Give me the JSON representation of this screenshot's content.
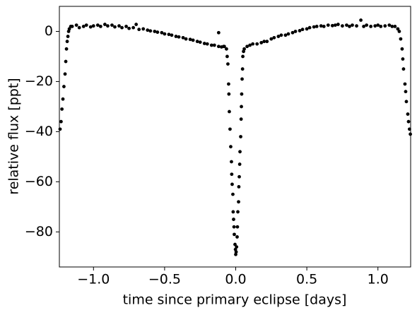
{
  "chart_data": {
    "type": "scatter",
    "xlabel": "time since primary eclipse [days]",
    "ylabel": "relative flux [ppt]",
    "color": "#000000",
    "x": [
      -1.235,
      -1.228,
      -1.222,
      -1.215,
      -1.208,
      -1.2,
      -1.195,
      -1.19,
      -1.185,
      -1.18,
      -1.175,
      -1.17,
      -1.16,
      -1.15,
      -1.12,
      -1.1,
      -1.07,
      -1.05,
      -1.02,
      -1.0,
      -0.97,
      -0.95,
      -0.92,
      -0.9,
      -0.87,
      -0.85,
      -0.82,
      -0.8,
      -0.77,
      -0.75,
      -0.72,
      -0.7,
      -0.68,
      -0.65,
      -0.62,
      -0.6,
      -0.57,
      -0.55,
      -0.52,
      -0.5,
      -0.47,
      -0.45,
      -0.42,
      -0.4,
      -0.37,
      -0.35,
      -0.32,
      -0.3,
      -0.27,
      -0.25,
      -0.22,
      -0.2,
      -0.17,
      -0.15,
      -0.12,
      -0.1,
      -0.085,
      -0.08,
      -0.065,
      -0.06,
      -0.055,
      -0.05,
      -0.048,
      -0.045,
      -0.04,
      -0.035,
      -0.03,
      -0.028,
      -0.025,
      -0.02,
      -0.018,
      -0.015,
      -0.012,
      -0.01,
      -0.005,
      -0.002,
      0.0,
      0.003,
      0.006,
      0.01,
      0.012,
      0.015,
      0.02,
      0.022,
      0.025,
      0.028,
      0.03,
      0.035,
      0.038,
      0.04,
      0.042,
      0.045,
      0.048,
      0.05,
      0.055,
      0.06,
      0.08,
      0.1,
      0.12,
      0.15,
      0.18,
      0.2,
      0.22,
      0.25,
      0.27,
      0.3,
      0.32,
      0.35,
      0.37,
      0.4,
      0.42,
      0.45,
      0.47,
      0.5,
      0.52,
      0.55,
      0.57,
      0.6,
      0.62,
      0.65,
      0.68,
      0.7,
      0.72,
      0.75,
      0.78,
      0.8,
      0.82,
      0.85,
      0.88,
      0.9,
      0.92,
      0.95,
      0.98,
      1.0,
      1.02,
      1.05,
      1.08,
      1.1,
      1.12,
      1.14,
      1.15,
      1.16,
      1.17,
      1.175,
      1.18,
      1.19,
      1.195,
      1.2,
      1.21,
      1.215,
      1.222,
      1.228,
      -0.12
    ],
    "y": [
      -39,
      -36,
      -31,
      -27,
      -22,
      -17,
      -12,
      -7,
      -4,
      -2,
      0,
      1,
      2,
      2,
      2.5,
      1.5,
      2,
      2.5,
      1.8,
      2.2,
      2.5,
      2,
      2.8,
      2.2,
      2.5,
      1.8,
      2.2,
      1.5,
      2,
      1.2,
      1.5,
      2.8,
      0.8,
      1,
      0.5,
      0.2,
      0,
      -0.3,
      -0.5,
      -1,
      -1.2,
      -1.5,
      -2,
      -2.2,
      -2.5,
      -3,
      -3.2,
      -3.5,
      -4,
      -4.3,
      -4.8,
      -5,
      -5.5,
      -5.5,
      -6,
      -6.2,
      -6,
      -6,
      -7,
      -10,
      -13,
      -21,
      -25,
      -32,
      -39,
      -46,
      -52,
      -57,
      -61,
      -65,
      -72,
      -75,
      -78,
      -81,
      -85,
      -87,
      -89,
      -88,
      -86,
      -82,
      -78,
      -72,
      -68,
      -62,
      -58,
      -53,
      -48,
      -42,
      -35,
      -30,
      -25,
      -19,
      -15,
      -10,
      -8,
      -7,
      -6,
      -5.5,
      -5,
      -5,
      -4.5,
      -4,
      -4,
      -3,
      -2.5,
      -2,
      -1.5,
      -1.5,
      -1,
      -0.5,
      0,
      0.3,
      0.8,
      1,
      1.5,
      1.8,
      2,
      2.2,
      2,
      2.5,
      2.3,
      2.5,
      2.8,
      2.2,
      2.5,
      2,
      2.5,
      2.2,
      4.5,
      2,
      2.5,
      2,
      2.2,
      2.5,
      2,
      2.2,
      2.5,
      2,
      2,
      1,
      0,
      -3,
      -7,
      -11,
      -15,
      -21,
      -24,
      -28,
      -33,
      -36,
      -39,
      -41,
      -0.5
    ],
    "xlim": [
      -1.24,
      1.23
    ],
    "ylim": [
      -94,
      10
    ],
    "xticks": [
      {
        "value": -1.0,
        "label": "−1.0"
      },
      {
        "value": -0.5,
        "label": "−0.5"
      },
      {
        "value": 0.0,
        "label": "0.0"
      },
      {
        "value": 0.5,
        "label": "0.5"
      },
      {
        "value": 1.0,
        "label": "1.0"
      }
    ],
    "yticks": [
      {
        "value": -80,
        "label": "−80"
      },
      {
        "value": -60,
        "label": "−60"
      },
      {
        "value": -40,
        "label": "−40"
      },
      {
        "value": -20,
        "label": "−20"
      },
      0
    ]
  }
}
